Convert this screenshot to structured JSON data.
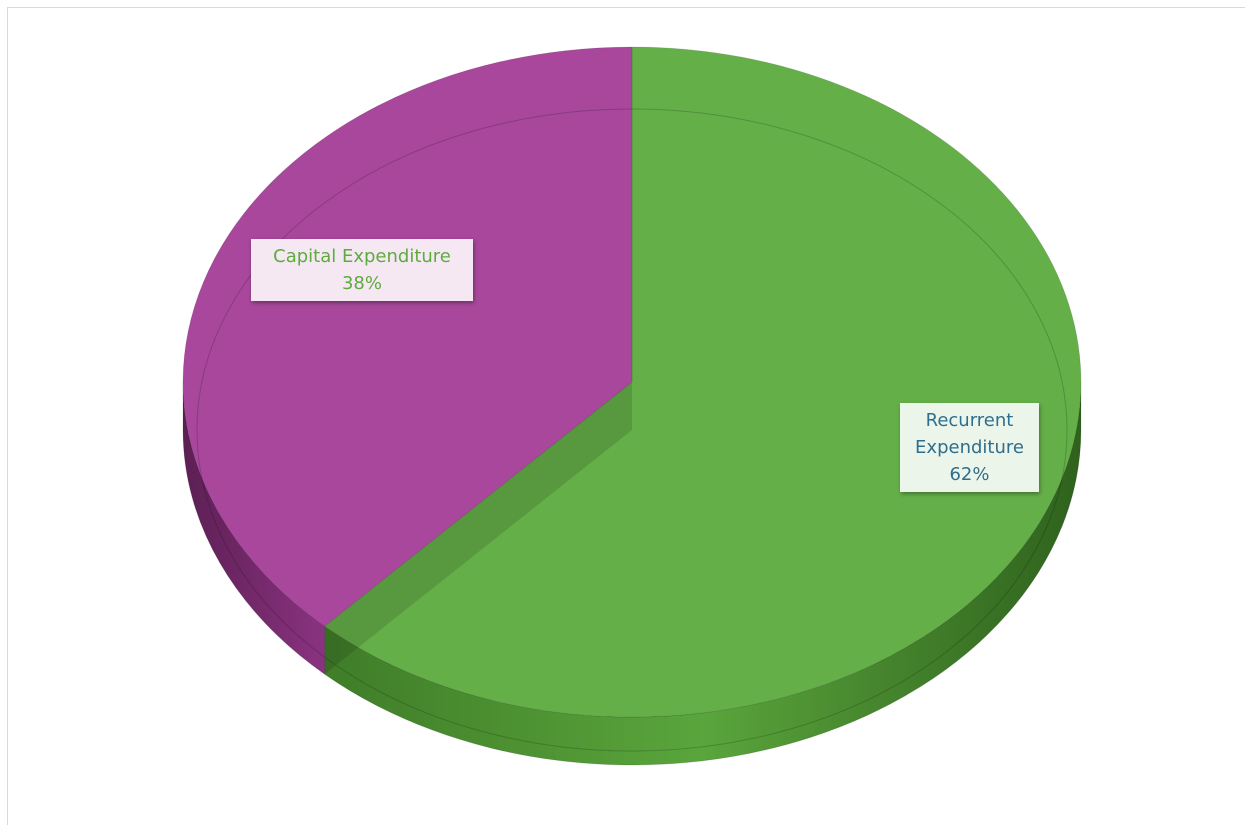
{
  "chart_data": {
    "type": "pie",
    "categories": [
      "Recurrent Expenditure",
      "Capital Expenditure"
    ],
    "values": [
      62,
      38
    ],
    "unit": "%",
    "colors": [
      "#5dab3f",
      "#a33d97"
    ],
    "label_text_colors": [
      "#2e6e8e",
      "#5dab3f"
    ],
    "labels": [
      {
        "lines": [
          "Recurrent",
          "Expenditure"
        ],
        "pct": "62%"
      },
      {
        "lines": [
          "Capital Expenditure"
        ],
        "pct": "38%"
      }
    ],
    "style": "3d-pie",
    "legend": "none"
  }
}
